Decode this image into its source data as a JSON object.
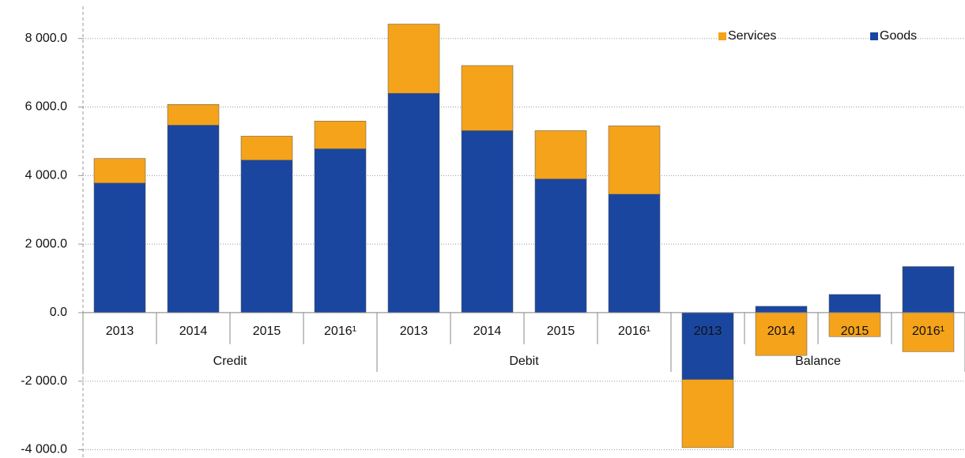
{
  "chart_data": {
    "type": "stacked_bar",
    "categories": [
      "2013",
      "2014",
      "2015",
      "2016¹",
      "2013",
      "2014",
      "2015",
      "2016¹",
      "2013",
      "2014",
      "2015",
      "2016¹"
    ],
    "category_groups": [
      "Credit",
      "Debit",
      "Balance"
    ],
    "series": [
      {
        "name": "Goods",
        "color": "#1a46a0",
        "values": [
          3780,
          5470,
          4450,
          4780,
          6400,
          5310,
          3900,
          3455,
          -1950,
          185,
          530,
          1345
        ]
      },
      {
        "name": "Services",
        "color": "#f5a31a",
        "values": [
          720,
          605,
          700,
          810,
          2020,
          1900,
          1410,
          1995,
          -1990,
          -1250,
          -700,
          -1140
        ]
      }
    ],
    "ylim": [
      -4000,
      8800
    ],
    "yticks": [
      {
        "value": -4000,
        "label": "-4 000.0"
      },
      {
        "value": -2000,
        "label": "-2 000.0"
      },
      {
        "value": 0,
        "label": "0.0"
      },
      {
        "value": 2000,
        "label": "2 000.0"
      },
      {
        "value": 4000,
        "label": "4 000.0"
      },
      {
        "value": 6000,
        "label": "6 000.0"
      },
      {
        "value": 8000,
        "label": "8 000.0"
      }
    ],
    "grid": true,
    "legend": "top-right"
  }
}
